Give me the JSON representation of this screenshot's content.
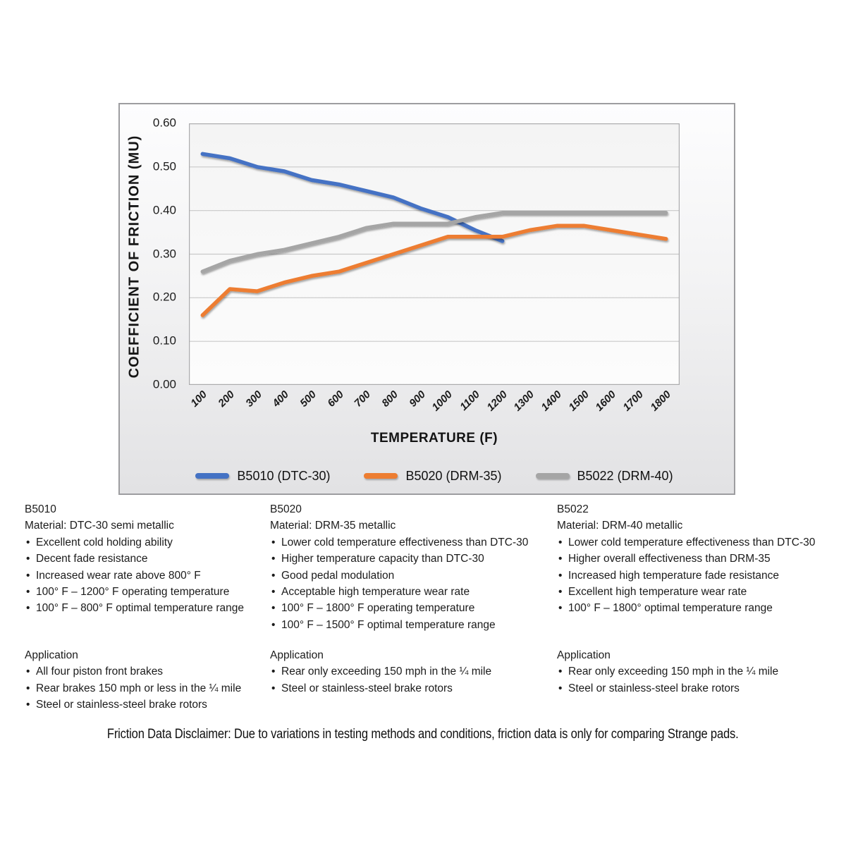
{
  "chart_data": {
    "type": "line",
    "categories": [
      100,
      200,
      300,
      400,
      500,
      600,
      700,
      800,
      900,
      1000,
      1100,
      1200,
      1300,
      1400,
      1500,
      1600,
      1700,
      1800
    ],
    "series": [
      {
        "name": "B5010 (DTC-30)",
        "color": "#4472C4",
        "values": [
          0.53,
          0.52,
          0.5,
          0.49,
          0.47,
          0.46,
          0.445,
          0.43,
          0.405,
          0.385,
          0.355,
          0.33
        ]
      },
      {
        "name": "B5020 (DRM-35)",
        "color": "#ED7D31",
        "values": [
          0.16,
          0.22,
          0.215,
          0.235,
          0.25,
          0.26,
          0.28,
          0.3,
          0.32,
          0.34,
          0.34,
          0.34,
          0.355,
          0.365,
          0.365,
          0.355,
          0.345,
          0.335
        ]
      },
      {
        "name": "B5022 (DRM-40)",
        "color": "#A5A5A5",
        "values": [
          0.26,
          0.285,
          0.3,
          0.31,
          0.325,
          0.34,
          0.36,
          0.37,
          0.37,
          0.37,
          0.385,
          0.395,
          0.395,
          0.395,
          0.395,
          0.395,
          0.395,
          0.395
        ]
      }
    ],
    "xlabel": "TEMPERATURE (F)",
    "ylabel": "COEFFICIENT OF FRICTION (MU)",
    "ylim": [
      0.0,
      0.6
    ],
    "yticks": [
      "0.00",
      "0.10",
      "0.20",
      "0.30",
      "0.40",
      "0.50",
      "0.60"
    ],
    "grid": true,
    "legend_position": "bottom"
  },
  "columns": [
    {
      "id": "B5010",
      "material": "Material: DTC-30 semi metallic",
      "features": [
        "Excellent cold holding ability",
        "Decent fade resistance",
        "Increased wear rate above 800° F",
        "100° F – 1200° F operating temperature",
        "100° F – 800° F optimal temperature range"
      ],
      "application_title": "Application",
      "applications": [
        "All four piston front brakes",
        "Rear brakes 150 mph or less in the ¼ mile",
        "Steel or stainless-steel brake rotors"
      ]
    },
    {
      "id": "B5020",
      "material": "Material: DRM-35 metallic",
      "features": [
        "Lower cold temperature effectiveness than DTC-30",
        "Higher temperature capacity than DTC-30",
        "Good pedal modulation",
        "Acceptable high temperature wear rate",
        "100° F – 1800° F operating temperature",
        "100° F – 1500° F optimal temperature range"
      ],
      "application_title": "Application",
      "applications": [
        "Rear only exceeding 150 mph in the ¼ mile",
        "Steel or stainless-steel brake rotors"
      ]
    },
    {
      "id": "B5022",
      "material": "Material: DRM-40 metallic",
      "features": [
        "Lower cold temperature effectiveness than DTC-30",
        "Higher overall effectiveness than DRM-35",
        "Increased high temperature fade resistance",
        "Excellent high temperature wear rate",
        "100° F – 1800° optimal temperature range"
      ],
      "application_title": "Application",
      "applications": [
        "Rear only exceeding 150 mph in the ¼ mile",
        "Steel or stainless-steel brake rotors"
      ]
    }
  ],
  "disclaimer": "Friction Data Disclaimer:  Due to variations in testing methods and conditions, friction data is only for comparing Strange pads."
}
